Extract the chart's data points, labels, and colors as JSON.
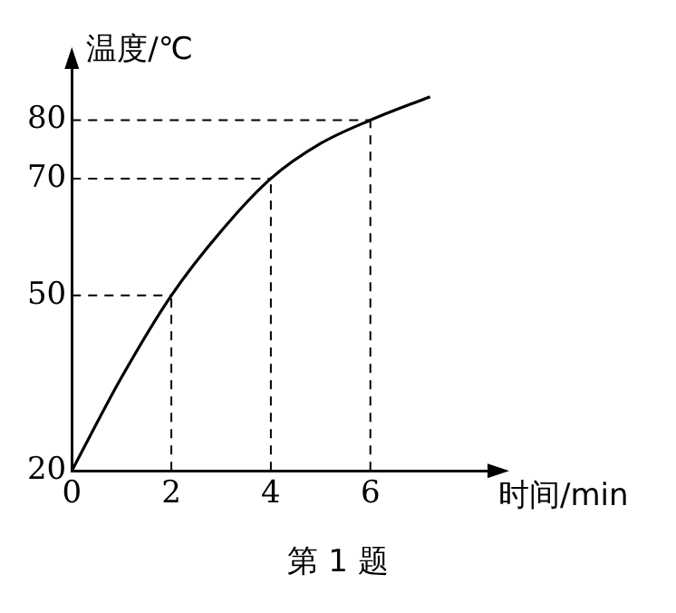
{
  "chart_data": {
    "type": "line",
    "xlabel": "时间/min",
    "ylabel": "温度/℃",
    "annotations": [
      "第 1 题"
    ],
    "x": [
      0,
      1,
      2,
      3,
      4,
      5,
      6,
      7.2
    ],
    "series": [
      {
        "color": "#000000",
        "values": [
          20,
          36,
          50,
          61,
          70,
          76,
          80,
          84
        ]
      }
    ],
    "xlim": [
      0,
      8.5
    ],
    "ylim": [
      20,
      90
    ],
    "xticks": [
      0,
      2,
      4,
      6
    ],
    "yticks": [
      20,
      50,
      70,
      80
    ],
    "ref_lines": [
      {
        "axis": "x",
        "value": 2,
        "line_style": "dashed"
      },
      {
        "axis": "x",
        "value": 4,
        "line_style": "dashed"
      },
      {
        "axis": "x",
        "value": 6,
        "line_style": "dashed"
      },
      {
        "axis": "y",
        "value": 50,
        "line_style": "dashed"
      },
      {
        "axis": "y",
        "value": 70,
        "line_style": "dashed"
      },
      {
        "axis": "y",
        "value": 80,
        "line_style": "dashed"
      }
    ],
    "grid": false,
    "legend": false,
    "marker": "none",
    "line_style": "solid"
  }
}
